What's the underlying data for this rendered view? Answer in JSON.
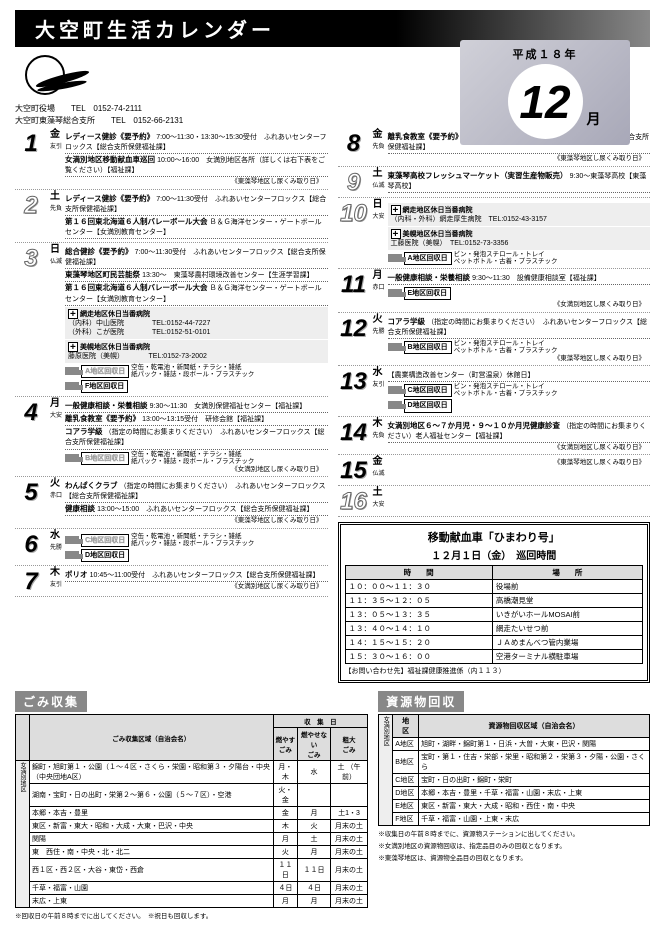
{
  "title": "大空町生活カレンダー",
  "era": "平成１８年",
  "month_num": "12",
  "month_suffix": "月",
  "contacts": [
    {
      "name": "大空町役場",
      "tel": "TEL　0152-74-2111"
    },
    {
      "name": "大空町東藻琴総合支所",
      "tel": "TEL　0152-66-2131"
    }
  ],
  "left_days": [
    {
      "num": "1",
      "outline": false,
      "dow": "金",
      "sub": "友引",
      "events": [
        {
          "title": "レディース健診《要予約》",
          "detail": "7:00～11:30・13:30～15:30受付　ふれあいセンターフロックス【総合支所保健福祉課】"
        },
        {
          "title": "女満別地区移動献血車巡回",
          "detail": "10:00～16:00　女満別地区各所（詳しくは右下表をご覧ください）【福祉課】"
        }
      ],
      "note": "《東藻琴地区し尿くみ取り日》"
    },
    {
      "num": "2",
      "outline": true,
      "dow": "土",
      "sub": "先負",
      "events": [
        {
          "title": "レディース健診《要予約》",
          "detail": "7:00～11:30受付　ふれあいセンターフロックス【総合支所保健福祉課】"
        },
        {
          "title": "第１６回東北海道６人制バレーボール大会",
          "detail": "Ｂ＆Ｇ海洋センター・ゲートボールセンター【女満別教育センター】"
        }
      ]
    },
    {
      "num": "3",
      "outline": true,
      "dow": "日",
      "sub": "仏滅",
      "events": [
        {
          "title": "総合健診《要予約》",
          "detail": "7:00～11:30受付　ふれあいセンターフロックス【総合支所保健福祉課】"
        },
        {
          "title": "東藻琴地区町民芸能祭",
          "detail": "13:30～　東藻琴農村環境改善センター【生涯学習課】"
        },
        {
          "title": "第１６回東北海道６人制バレーボール大会",
          "detail": "Ｂ＆Ｇ海洋センター・ゲートボールセンター【女満別教育センター】"
        }
      ],
      "hospitals": [
        {
          "label": "網走地区休日当番病院",
          "lines": [
            "（内科）中山医院　　　　TEL:0152-44-7227",
            "（外科）こが医院　　　　TEL:0152-51-0101"
          ]
        },
        {
          "label": "美幌地区休日当番病院",
          "lines": [
            "藤原医院（美幌）　　　　TEL:0152-73-2002"
          ]
        }
      ],
      "collects": [
        {
          "badge": "A地区回収日",
          "outline": true,
          "items": "空缶・乾電池・新聞紙・チラシ・雑紙\n紙パック・雑誌・段ボール・プラスチック"
        },
        {
          "badge": "F地区回収日",
          "outline": false,
          "items": ""
        }
      ]
    },
    {
      "num": "4",
      "outline": false,
      "dow": "月",
      "sub": "大安",
      "events": [
        {
          "title": "一般健康相談・栄養相談",
          "detail": "9:30～11:30　女満別保健福祉センター【福祉課】"
        },
        {
          "title": "離乳食教室《要予約》",
          "detail": "13:00～13:15受付　研修会館【福祉課】"
        },
        {
          "title": "コアラ学級",
          "detail": "（指定の時間にお集まりください）　ふれあいセンターフロックス【総合支所保健福祉課】"
        }
      ],
      "note": "《女満別地区し尿くみ取り日》",
      "collects": [
        {
          "badge": "B地区回収日",
          "outline": true,
          "items": "空缶・乾電池・新聞紙・チラシ・雑紙\n紙パック・雑誌・段ボール・プラスチック"
        }
      ]
    },
    {
      "num": "5",
      "outline": false,
      "dow": "火",
      "sub": "赤口",
      "events": [
        {
          "title": "わんぱくクラブ",
          "detail": "（指定の時間にお集まりください）　ふれあいセンターフロックス【総合支所保健福祉課】"
        },
        {
          "title": "健康相談",
          "detail": "13:00～15:00　ふれあいセンターフロックス【総合支所保健福祉課】"
        }
      ],
      "note": "《東藻琴地区し尿くみ取り日》"
    },
    {
      "num": "6",
      "outline": false,
      "dow": "水",
      "sub": "先勝",
      "collects": [
        {
          "badge": "C地区回収日",
          "outline": true,
          "items": "空缶・乾電池・新聞紙・チラシ・雑紙\n紙パック・雑誌・段ボール・プラスチック"
        },
        {
          "badge": "D地区回収日",
          "outline": false,
          "items": ""
        }
      ]
    },
    {
      "num": "7",
      "outline": false,
      "dow": "木",
      "sub": "友引",
      "events": [
        {
          "title": "ポリオ",
          "detail": "10:45～11:00受付　ふれあいセンターフロックス【総合支所保健福祉課】"
        }
      ],
      "note": "《女満別地区し尿くみ取り日》"
    }
  ],
  "right_days": [
    {
      "num": "8",
      "outline": false,
      "dow": "金",
      "sub": "先負",
      "events": [
        {
          "title": "離乳食教室《要予約》",
          "detail": "9:45～10:00受付　ふれあいセンターフロックス【総合支所保健福祉課】"
        }
      ],
      "note": "《東藻琴地区し尿くみ取り日》"
    },
    {
      "num": "9",
      "outline": true,
      "dow": "土",
      "sub": "仏滅",
      "events": [
        {
          "title": "東藻琴高校フレッシュマーケット（実習生産物販売）",
          "detail": "9:30～東藻琴高校【東藻琴高校】"
        }
      ]
    },
    {
      "num": "10",
      "outline": true,
      "dow": "日",
      "sub": "大安",
      "hospitals": [
        {
          "label": "網走地区休日当番病院",
          "lines": [
            "（内科・外科）網走厚生病院　TEL:0152-43-3157"
          ]
        },
        {
          "label": "美幌地区休日当番病院",
          "lines": [
            "工藤医院（美幌）　TEL:0152-73-3356"
          ]
        }
      ],
      "collects": [
        {
          "badge": "A地区回収日",
          "outline": false,
          "items": "ビン・発泡スチロール・トレイ\nペットボトル・古着・プラスチック"
        }
      ]
    },
    {
      "num": "11",
      "outline": false,
      "dow": "月",
      "sub": "赤口",
      "collects": [
        {
          "badge": "E地区回収日",
          "outline": false,
          "items": ""
        }
      ],
      "events": [
        {
          "title": "一般健康相談・栄養相談",
          "detail": "9:30～11:30　設備健康相談室【福祉課】"
        }
      ],
      "note": "《女満別地区し尿くみ取り日》"
    },
    {
      "num": "12",
      "outline": false,
      "dow": "火",
      "sub": "先勝",
      "collects": [
        {
          "badge": "B地区回収日",
          "outline": false,
          "items": "ビン・発泡スチロール・トレイ\nペットボトル・古着・プラスチック"
        }
      ],
      "events": [
        {
          "title": "コアラ学級",
          "detail": "（指定の時間にお集まりください）　ふれあいセンターフロックス【総合支所保健福祉課】"
        }
      ],
      "note": "《東藻琴地区し尿くみ取り日》"
    },
    {
      "num": "13",
      "outline": false,
      "dow": "水",
      "sub": "友引",
      "collects": [
        {
          "badge": "C地区回収日",
          "outline": false,
          "items": "ビン・発泡スチロール・トレイ\nペットボトル・古着・プラスチック"
        },
        {
          "badge": "D地区回収日",
          "outline": false,
          "items": ""
        }
      ],
      "events": [
        {
          "title": "",
          "detail": "【農業構造改善センター（町営温泉）休館日】"
        }
      ]
    },
    {
      "num": "14",
      "outline": false,
      "dow": "木",
      "sub": "先負",
      "events": [
        {
          "title": "女満別地区６～７か月児・９～１０か月児健康診査",
          "detail": "（指定の時間にお集まりください）老人福祉センター【福祉課】"
        }
      ],
      "note": "《女満別地区し尿くみ取り日》"
    },
    {
      "num": "15",
      "outline": false,
      "dow": "金",
      "sub": "仏滅",
      "note": "《東藻琴地区し尿くみ取り日》"
    },
    {
      "num": "16",
      "outline": true,
      "dow": "土",
      "sub": "大安"
    }
  ],
  "blood": {
    "title": "移動献血車「ひまわり号」",
    "date": "１２月１日（金）　巡回時間",
    "header": [
      "時　　間",
      "場　　所"
    ],
    "rows": [
      [
        "１０：００～１１：３０",
        "役場前"
      ],
      [
        "１１：３５～１２：０５",
        "高橋潮見堂"
      ],
      [
        "１３：０５～１３：３５",
        "いきがいホールMOSAI前"
      ],
      [
        "１３：４０～１４：１０",
        "網走たいせつ前"
      ],
      [
        "１４：１５～１５：２０",
        "ＪＡめまんべつ管内業場"
      ],
      [
        "１５：３０～１６：００",
        "空港ターミナル横駐車場"
      ]
    ],
    "note": "【お問い合わせ先】福祉課健康推進係（内１１３）"
  },
  "gomi": {
    "title": "ごみ収集",
    "col_headers": [
      "",
      "ごみ収集区域（自治会名）",
      "燃やす\nごみ",
      "燃やせない\nごみ",
      "粗大\nごみ"
    ],
    "day_header": "収　集　日",
    "groups": [
      {
        "area": "女満別地区",
        "rows": [
          [
            "錦町・旭町第１・公園（１～４区・さくら・栄園・昭和第３・夕陽台・中央（中央団地A区）",
            "月・木",
            "水",
            "土\n（午前）"
          ],
          [
            "湖南・宝町・日の出町・栄第２～第６・公園（５～７区）・空港",
            "火・金",
            "",
            ""
          ],
          [
            "本郷・本吉・豊里",
            "金",
            "月",
            "土1・3"
          ],
          [
            "東区・新富・東大・昭和・大成・大東・巴沢・中央",
            "木",
            "火",
            "月末の土"
          ],
          [
            "関陽",
            "月",
            "土",
            "月末の土"
          ],
          [
            "東　西住・南・中央・北・北二",
            "火",
            "月",
            "月末の土"
          ],
          [
            "西１区・西２区・大谷・東岱・西倉",
            "１１日",
            "１１日",
            "月末の土"
          ],
          [
            "千草・福富・山園",
            "４日",
            "４日",
            "月末の土"
          ],
          [
            "末広・上東",
            "月",
            "月",
            "月末の土"
          ]
        ]
      }
    ],
    "note": "※回収日の午前８時までに出してください。　※祝日も回収します。"
  },
  "shigen": {
    "title": "資源物回収",
    "header": [
      "地　区",
      "資源物回収区域（自治会名）"
    ],
    "area_label": "女満別地区",
    "rows": [
      [
        "A地区",
        "旭町・湖畔・錦町第１・日浜・大曽・大東・巴沢・関陽"
      ],
      [
        "B地区",
        "宝町・第１・住吉・栄部・栄里・昭和第２・栄第３・夕陽・公園・さくら"
      ],
      [
        "C地区",
        "宝町・日の出町・錦町・栄町"
      ],
      [
        "D地区",
        "本郷・本吉・豊里・千草・福富・山園・末広・上東"
      ],
      [
        "E地区",
        "東区・新富・東大・大成・昭和・西住・南・中央"
      ],
      [
        "F地区",
        "千草・福富・山園・上東・末広"
      ]
    ],
    "notes": [
      "※収集日の午前８時までに、資源物ステーションに出してください。",
      "※女満別地区の資源物回収は、指定品目のみの回収となります。",
      "※東藻琴地区は、資源物全品目の回収となります。"
    ]
  }
}
